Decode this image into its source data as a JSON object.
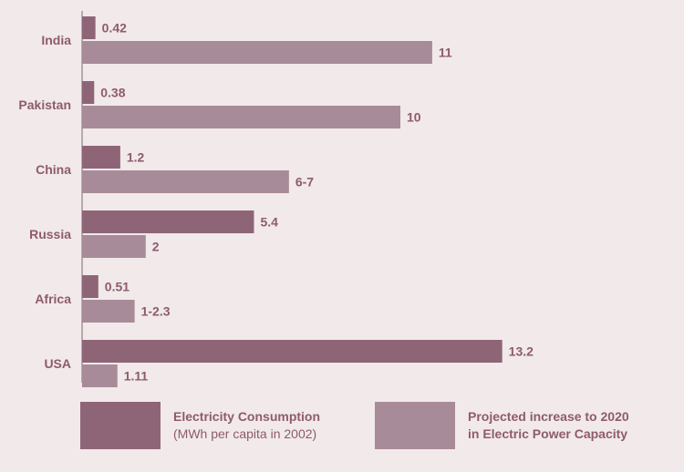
{
  "chart_data": {
    "type": "bar",
    "orientation": "horizontal",
    "categories": [
      "India",
      "Pakistan",
      "China",
      "Russia",
      "Africa",
      "USA"
    ],
    "series": [
      {
        "name": "Electricity Consumption (MWh per capita in 2002)",
        "values": [
          0.42,
          0.38,
          1.2,
          5.4,
          0.51,
          13.2
        ],
        "labels": [
          "0.42",
          "0.38",
          "1.2",
          "5.4",
          "0.51",
          "13.2"
        ],
        "color": "#8e6577"
      },
      {
        "name": "Projected increase to 2020 in Electric Power Capacity",
        "values": [
          11,
          10,
          6.5,
          2,
          1.65,
          1.11
        ],
        "labels": [
          "11",
          "10",
          "6-7",
          "2",
          "1-2.3",
          "1.11"
        ],
        "color": "#a88b98"
      }
    ],
    "title": "",
    "xlabel": "",
    "ylabel": "",
    "grid": false,
    "legend_position": "bottom"
  },
  "legend": {
    "consumption_title": "Electricity Consumption",
    "consumption_sub": "(MWh per capita in 2002)",
    "projected_line1": "Projected increase to 2020",
    "projected_line2": "in Electric Power Capacity"
  },
  "colors": {
    "background": "#f1e9ea",
    "consumption": "#8e6577",
    "projected": "#a88b98",
    "text": "#8e5b6d",
    "axis": "#7a6a70"
  }
}
